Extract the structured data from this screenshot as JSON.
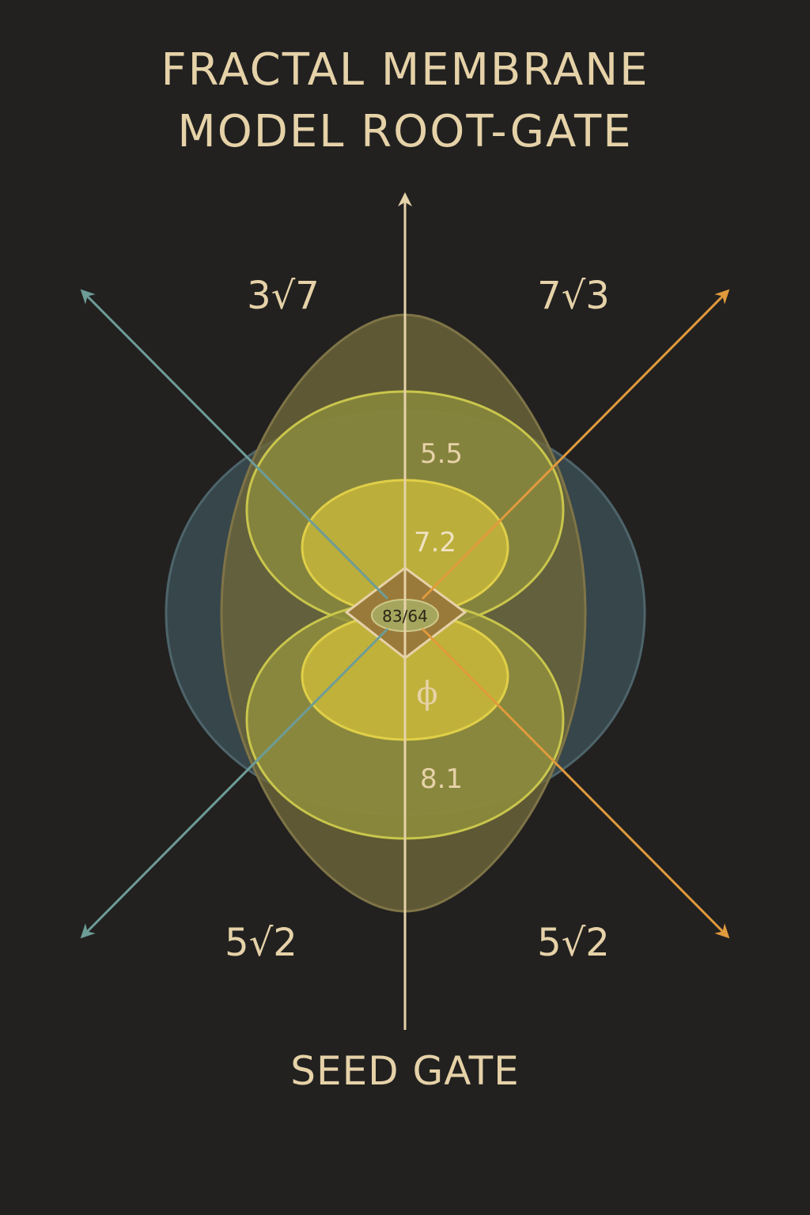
{
  "title": {
    "line1": "FRACTAL  MEMBRANE",
    "line2": "MODEL ROOT-GATE"
  },
  "corner_labels": {
    "top_left": "3√7",
    "top_right": "7√3",
    "bottom_left": "5√2",
    "bottom_right": "5√2"
  },
  "layer_values": {
    "upper_outer": "5.5",
    "upper_inner": "7.2",
    "core": "83/64",
    "lower_inner": "ϕ",
    "lower_outer": "8.1"
  },
  "bottom_label": "SEED GATE",
  "colors": {
    "background": "#222120",
    "text": "#e6d2a8",
    "teal_axis": "#6e9c97",
    "orange_axis": "#e19a3c",
    "yellow_fill": "#b9b63f",
    "blue_membrane": "#3b4c52",
    "olive_membrane": "#6e6639"
  }
}
